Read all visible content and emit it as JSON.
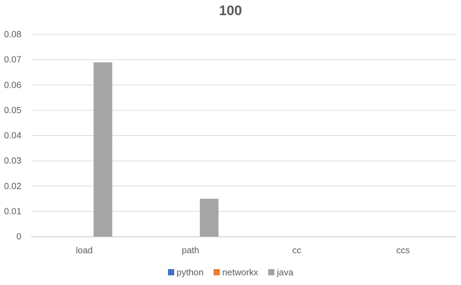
{
  "chart_data": {
    "type": "bar",
    "title": "100",
    "categories": [
      "load",
      "path",
      "cc",
      "ccs"
    ],
    "series": [
      {
        "name": "python",
        "color": "#4472C4",
        "values": [
          0,
          0,
          0,
          0
        ]
      },
      {
        "name": "networkx",
        "color": "#ED7D31",
        "values": [
          0,
          0,
          0,
          0
        ]
      },
      {
        "name": "java",
        "color": "#A5A5A5",
        "values": [
          0.069,
          0.015,
          0,
          0
        ]
      }
    ],
    "ylim": [
      0,
      0.08
    ],
    "yticks": [
      "0",
      "0.01",
      "0.02",
      "0.03",
      "0.04",
      "0.05",
      "0.06",
      "0.07",
      "0.08"
    ],
    "grid": true,
    "legend": "bottom"
  }
}
